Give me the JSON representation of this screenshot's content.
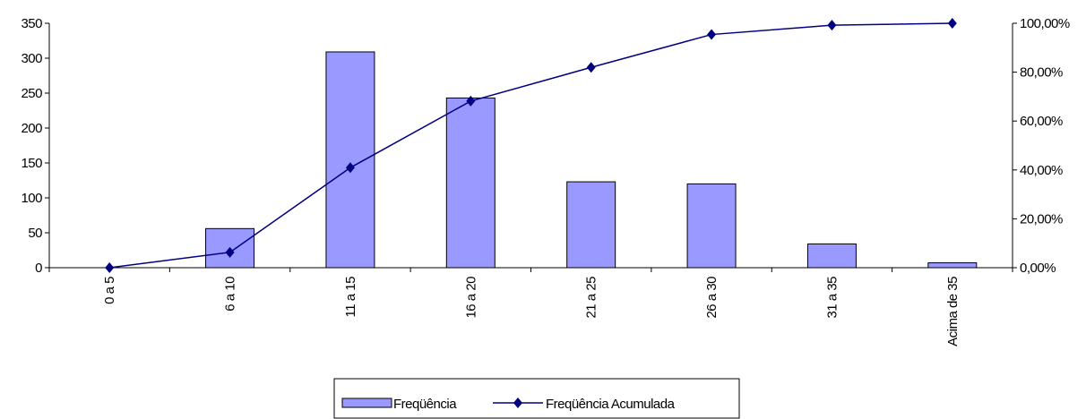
{
  "chart_data": {
    "type": "bar",
    "categories": [
      "0 a 5",
      "6 a 10",
      "11 a 15",
      "16 a 20",
      "21 a 25",
      "26 a 30",
      "31 a 35",
      "Acima de 35"
    ],
    "series": [
      {
        "name": "Freqüência",
        "type": "bar",
        "color": "#9999ff",
        "values": [
          0,
          56,
          309,
          243,
          123,
          120,
          34,
          7
        ]
      },
      {
        "name": "Freqüência Acumulada",
        "type": "line",
        "axis": "y2",
        "color": "#000080",
        "values": [
          0,
          6.28,
          40.92,
          68.16,
          81.95,
          95.4,
          99.22,
          100
        ]
      }
    ],
    "ylim": [
      0,
      350
    ],
    "yticks": [
      0,
      50,
      100,
      150,
      200,
      250,
      300,
      350
    ],
    "y2lim": [
      0,
      100
    ],
    "y2ticks": [
      {
        "value": 0,
        "label": "0,00%"
      },
      {
        "value": 20,
        "label": "20,00%"
      },
      {
        "value": 40,
        "label": "40,00%"
      },
      {
        "value": 60,
        "label": "60,00%"
      },
      {
        "value": 80,
        "label": "80,00%"
      },
      {
        "value": 100,
        "label": "100,00%"
      }
    ],
    "legend": "bottom"
  }
}
